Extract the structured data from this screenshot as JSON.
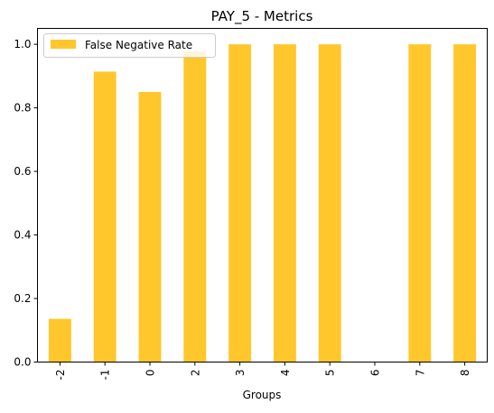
{
  "chart_data": {
    "type": "bar",
    "title": "PAY_5 - Metrics",
    "xlabel": "Groups",
    "ylabel": "",
    "categories": [
      "-2",
      "-1",
      "0",
      "2",
      "3",
      "4",
      "5",
      "6",
      "7",
      "8"
    ],
    "series": [
      {
        "name": "False Negative Rate",
        "values": [
          0.136,
          0.914,
          0.85,
          0.977,
          1.0,
          1.0,
          1.0,
          0.0,
          1.0,
          1.0
        ],
        "color": "#ffc72c"
      }
    ],
    "ylim": [
      0,
      1.05
    ],
    "yticks": [
      "0.0",
      "0.2",
      "0.4",
      "0.6",
      "0.8",
      "1.0"
    ],
    "grid": false,
    "legend_position": "top-left",
    "x_tick_rotation": "vertical"
  }
}
